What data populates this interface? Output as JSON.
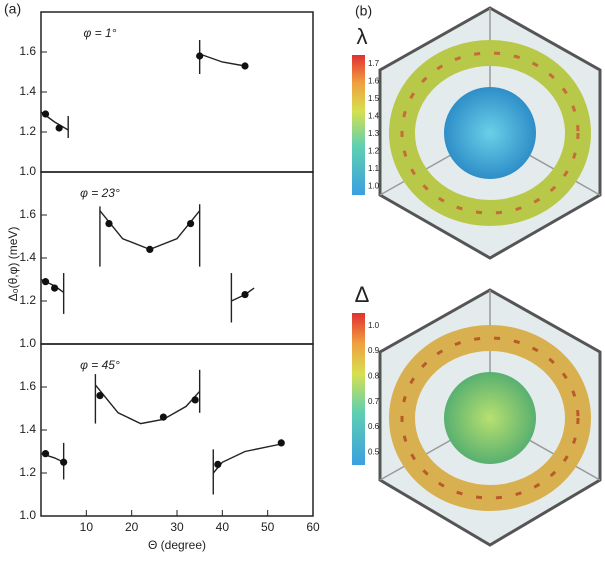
{
  "panel_a_label": "(a)",
  "panel_b_label": "(b)",
  "ylabel": "Δ₀(θ,φ) (meV)",
  "chart_data": [
    {
      "type": "line",
      "annotation": "φ = 1°",
      "xlim": [
        0,
        60
      ],
      "ylim": [
        1.0,
        1.8
      ],
      "yticks": [
        {
          "value": 1,
          "label": "1.0"
        },
        1.2,
        1.4,
        1.6
      ],
      "x": [
        0,
        3,
        6,
        null,
        35,
        40,
        45
      ],
      "values": [
        1.3,
        1.25,
        1.21,
        null,
        1.59,
        1.55,
        1.53
      ],
      "points": {
        "x": [
          1,
          4,
          35,
          45
        ],
        "values": [
          1.29,
          1.22,
          1.58,
          1.53
        ]
      },
      "boundaries": [
        {
          "x": 6,
          "y": [
            1.17,
            1.28
          ]
        },
        {
          "x": 35,
          "y": [
            1.49,
            1.66
          ]
        }
      ]
    },
    {
      "type": "line",
      "annotation": "φ = 23°",
      "xlim": [
        0,
        60
      ],
      "ylim": [
        1.0,
        1.8
      ],
      "yticks": [
        {
          "value": 1,
          "label": "1.0"
        },
        1.2,
        1.4,
        1.6
      ],
      "x": [
        0,
        3,
        5,
        null,
        13,
        18,
        24,
        30,
        35,
        null,
        42,
        45,
        47
      ],
      "values": [
        1.3,
        1.27,
        1.24,
        null,
        1.62,
        1.49,
        1.44,
        1.49,
        1.62,
        null,
        1.2,
        1.23,
        1.26
      ],
      "points": {
        "x": [
          1,
          3,
          15,
          24,
          33,
          45
        ],
        "values": [
          1.29,
          1.26,
          1.56,
          1.44,
          1.56,
          1.23
        ]
      },
      "boundaries": [
        {
          "x": 5,
          "y": [
            1.14,
            1.33
          ]
        },
        {
          "x": 13,
          "y": [
            1.36,
            1.64
          ]
        },
        {
          "x": 35,
          "y": [
            1.36,
            1.65
          ]
        },
        {
          "x": 42,
          "y": [
            1.1,
            1.33
          ]
        }
      ]
    },
    {
      "type": "line",
      "annotation": "φ = 45°",
      "xlim": [
        0,
        60
      ],
      "ylim": [
        1.0,
        1.8
      ],
      "xlabel": "Θ (degree)",
      "xticks": [
        10,
        20,
        30,
        40,
        50,
        60
      ],
      "yticks": [
        {
          "value": 1,
          "label": "1.0"
        },
        1.2,
        1.4,
        1.6
      ],
      "x": [
        0,
        3,
        5,
        null,
        12,
        17,
        22,
        27,
        32,
        35,
        null,
        38,
        40,
        45,
        53
      ],
      "values": [
        1.29,
        1.27,
        1.25,
        null,
        1.61,
        1.48,
        1.43,
        1.45,
        1.51,
        1.58,
        null,
        1.2,
        1.25,
        1.3,
        1.335
      ],
      "points": {
        "x": [
          1,
          5,
          13,
          27,
          34,
          39,
          53
        ],
        "values": [
          1.29,
          1.25,
          1.56,
          1.46,
          1.54,
          1.24,
          1.34
        ]
      },
      "boundaries": [
        {
          "x": 5,
          "y": [
            1.17,
            1.34
          ]
        },
        {
          "x": 12,
          "y": [
            1.43,
            1.66
          ]
        },
        {
          "x": 35,
          "y": [
            1.48,
            1.68
          ]
        },
        {
          "x": 38,
          "y": [
            1.1,
            1.31
          ]
        }
      ]
    }
  ],
  "colorbars": [
    {
      "symbol": "λ",
      "range": [
        0.95,
        1.75
      ],
      "ticks": [
        {
          "value": 1,
          "label": "1.0"
        },
        1.1,
        1.2,
        1.3,
        1.4,
        1.5,
        1.6,
        1.7
      ]
    },
    {
      "symbol": "Δ",
      "range": [
        0.45,
        1.05
      ],
      "ticks": [
        0.5,
        0.6,
        0.7,
        0.8,
        0.9,
        {
          "value": 1,
          "label": "1.0"
        }
      ]
    }
  ]
}
